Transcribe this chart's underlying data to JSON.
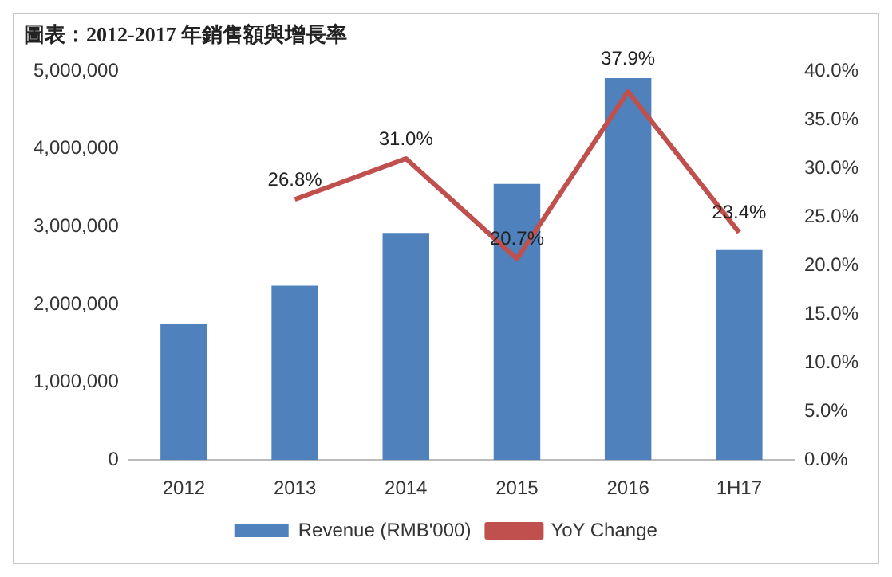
{
  "chart_data": {
    "type": "bar",
    "title": "圖表：2012-2017 年銷售額與增長率",
    "categories": [
      "2012",
      "2013",
      "2014",
      "2015",
      "2016",
      "1H17"
    ],
    "series": [
      {
        "name": "Revenue (RMB'000)",
        "color": "#4f81bd",
        "values": [
          1750000,
          2240000,
          2920000,
          3550000,
          4910000,
          2700000
        ]
      },
      {
        "name": "YoY Change",
        "type": "line",
        "axis": "y2",
        "color": "#c0504d",
        "values": [
          null,
          26.8,
          31.0,
          20.7,
          37.9,
          23.4
        ],
        "value_labels": [
          null,
          "26.8%",
          "31.0%",
          "20.7%",
          "37.9%",
          "23.4%"
        ]
      }
    ],
    "ylim": [
      0,
      5000000
    ],
    "yticks": [
      0,
      {
        "value": 1000000,
        "label": "1,000,000"
      },
      {
        "value": 2000000,
        "label": "2,000,000"
      },
      {
        "value": 3000000,
        "label": "3,000,000"
      },
      {
        "value": 4000000,
        "label": "4,000,000"
      },
      {
        "value": 5000000,
        "label": "5,000,000"
      }
    ],
    "y2lim": [
      0,
      40
    ],
    "y2ticks": [
      {
        "value": 0,
        "label": "0.0%"
      },
      {
        "value": 5,
        "label": "5.0%"
      },
      {
        "value": 10,
        "label": "10.0%"
      },
      {
        "value": 15,
        "label": "15.0%"
      },
      {
        "value": 20,
        "label": "20.0%"
      },
      {
        "value": 25,
        "label": "25.0%"
      },
      {
        "value": 30,
        "label": "30.0%"
      },
      {
        "value": 35,
        "label": "35.0%"
      },
      {
        "value": 40,
        "label": "40.0%"
      }
    ],
    "grid": false,
    "legend": "bottom",
    "marker": "none"
  }
}
